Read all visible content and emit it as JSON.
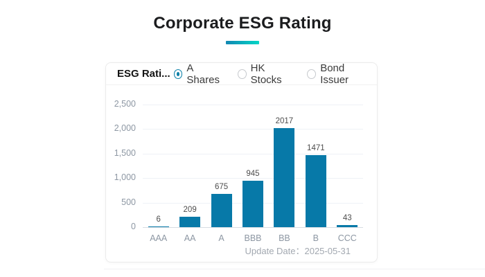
{
  "page": {
    "title": "Corporate ESG Rating"
  },
  "panel": {
    "header_label": "ESG Rati...",
    "radios": [
      {
        "label": "A Shares",
        "selected": true
      },
      {
        "label": "HK Stocks",
        "selected": false
      },
      {
        "label": "Bond Issuer",
        "selected": false
      }
    ],
    "footer": "Update Date：2025-05-31"
  },
  "chart_data": {
    "type": "bar",
    "categories": [
      "AAA",
      "AA",
      "A",
      "BBB",
      "BB",
      "B",
      "CCC"
    ],
    "values": [
      6,
      209,
      675,
      945,
      2017,
      1471,
      43
    ],
    "title": "Corporate ESG Rating",
    "xlabel": "",
    "ylabel": "",
    "ylim": [
      0,
      2500
    ],
    "yticks": [
      0,
      500,
      1000,
      1500,
      2000,
      2500
    ],
    "ytick_labels": [
      "0",
      "500",
      "1,000",
      "1,500",
      "2,000",
      "2,500"
    ],
    "grid": true,
    "legend_position": "none",
    "bar_color": "#0779a8"
  },
  "colors": {
    "accent_gradient_start": "#1287b2",
    "accent_gradient_end": "#03d6c6",
    "bar": "#0779a8",
    "radio_selected": "#0b80a8",
    "axis_text": "#8d97a3",
    "footer_text": "#a2a8b0"
  }
}
